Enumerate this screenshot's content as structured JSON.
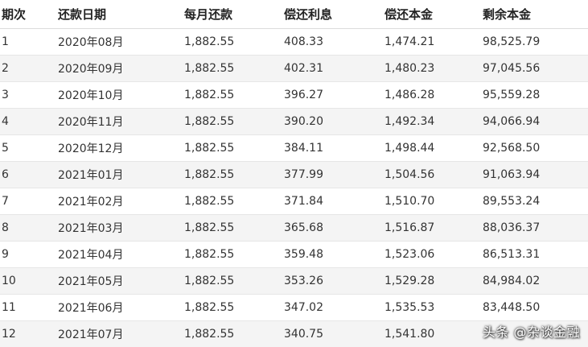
{
  "table": {
    "headers": [
      "期次",
      "还款日期",
      "每月还款",
      "偿还利息",
      "偿还本金",
      "剩余本金"
    ],
    "rows": [
      [
        "1",
        "2020年08月",
        "1,882.55",
        "408.33",
        "1,474.21",
        "98,525.79"
      ],
      [
        "2",
        "2020年09月",
        "1,882.55",
        "402.31",
        "1,480.23",
        "97,045.56"
      ],
      [
        "3",
        "2020年10月",
        "1,882.55",
        "396.27",
        "1,486.28",
        "95,559.28"
      ],
      [
        "4",
        "2020年11月",
        "1,882.55",
        "390.20",
        "1,492.34",
        "94,066.94"
      ],
      [
        "5",
        "2020年12月",
        "1,882.55",
        "384.11",
        "1,498.44",
        "92,568.50"
      ],
      [
        "6",
        "2021年01月",
        "1,882.55",
        "377.99",
        "1,504.56",
        "91,063.94"
      ],
      [
        "7",
        "2021年02月",
        "1,882.55",
        "371.84",
        "1,510.70",
        "89,553.24"
      ],
      [
        "8",
        "2021年03月",
        "1,882.55",
        "365.68",
        "1,516.87",
        "88,036.37"
      ],
      [
        "9",
        "2021年04月",
        "1,882.55",
        "359.48",
        "1,523.06",
        "86,513.31"
      ],
      [
        "10",
        "2021年05月",
        "1,882.55",
        "353.26",
        "1,529.28",
        "84,984.02"
      ],
      [
        "11",
        "2021年06月",
        "1,882.55",
        "347.02",
        "1,535.53",
        "83,448.50"
      ],
      [
        "12",
        "2021年07月",
        "1,882.55",
        "340.75",
        "1,541.80",
        ""
      ]
    ]
  },
  "watermark": "头条 @杂谈金融"
}
